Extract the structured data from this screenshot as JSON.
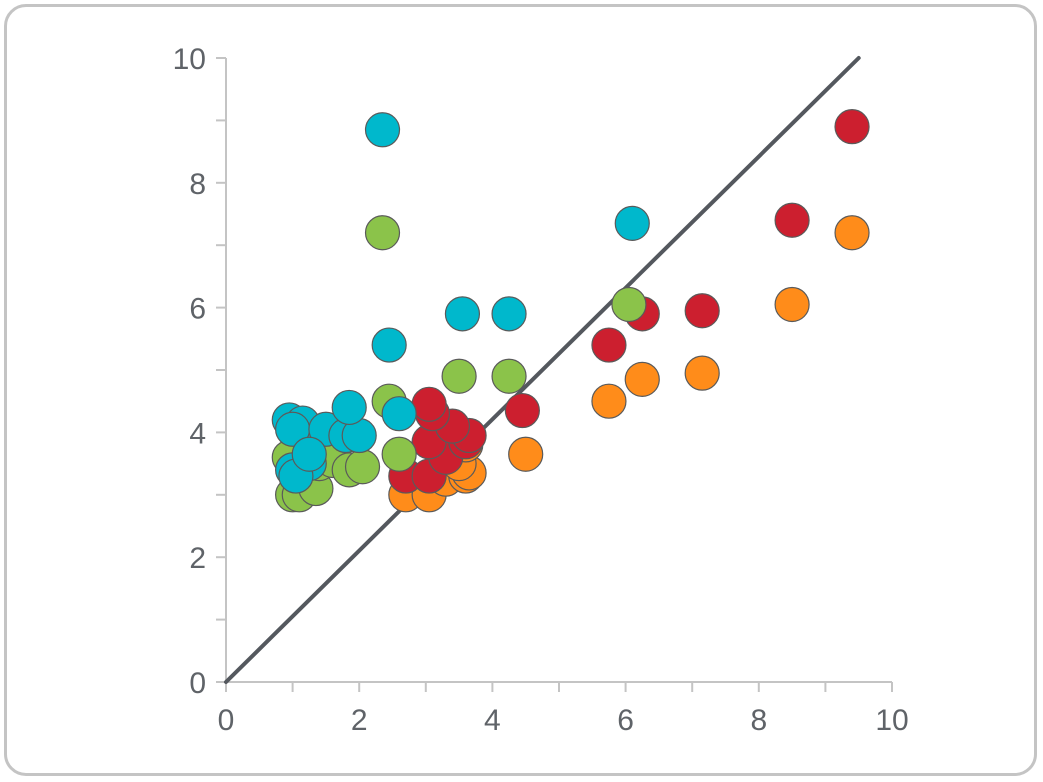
{
  "chart_data": {
    "type": "scatter",
    "title": "",
    "xlabel": "",
    "ylabel": "",
    "xlim": [
      0,
      10
    ],
    "ylim": [
      0,
      10
    ],
    "grid": false,
    "x_ticks": [
      "0",
      "2",
      "4",
      "6",
      "8",
      "10"
    ],
    "y_ticks": [
      "0",
      "2",
      "4",
      "6",
      "8",
      "10"
    ],
    "reference_line": {
      "from": [
        0,
        0
      ],
      "to": [
        9.5,
        10
      ],
      "color": "#54585e"
    },
    "series": [
      {
        "color": "#ff8c1a",
        "points": [
          [
            2.7,
            3.0
          ],
          [
            3.05,
            3.0
          ],
          [
            3.3,
            3.25
          ],
          [
            3.6,
            3.3
          ],
          [
            3.65,
            3.35
          ],
          [
            3.5,
            3.5
          ],
          [
            3.6,
            3.8
          ],
          [
            4.5,
            3.65
          ],
          [
            5.75,
            4.5
          ],
          [
            6.25,
            4.85
          ],
          [
            7.15,
            4.95
          ],
          [
            8.5,
            6.05
          ],
          [
            9.4,
            7.2
          ]
        ]
      },
      {
        "color": "#cc1f2f",
        "points": [
          [
            2.7,
            3.3
          ],
          [
            3.05,
            3.3
          ],
          [
            3.3,
            3.6
          ],
          [
            3.05,
            3.85
          ],
          [
            3.6,
            3.85
          ],
          [
            3.65,
            3.95
          ],
          [
            3.4,
            4.1
          ],
          [
            3.1,
            4.3
          ],
          [
            3.05,
            4.45
          ],
          [
            4.45,
            4.35
          ],
          [
            5.75,
            5.4
          ],
          [
            6.25,
            5.9
          ],
          [
            7.15,
            5.95
          ],
          [
            8.5,
            7.4
          ],
          [
            9.4,
            8.9
          ]
        ]
      },
      {
        "color": "#8bc34a",
        "points": [
          [
            1.0,
            3.0
          ],
          [
            1.1,
            3.0
          ],
          [
            1.35,
            3.1
          ],
          [
            0.95,
            3.6
          ],
          [
            1.4,
            3.5
          ],
          [
            1.6,
            3.55
          ],
          [
            1.85,
            3.4
          ],
          [
            2.05,
            3.45
          ],
          [
            2.45,
            4.5
          ],
          [
            2.6,
            3.65
          ],
          [
            3.5,
            4.9
          ],
          [
            4.25,
            4.9
          ],
          [
            6.05,
            6.05
          ],
          [
            2.35,
            7.2
          ]
        ]
      },
      {
        "color": "#00b8cc",
        "points": [
          [
            0.95,
            4.2
          ],
          [
            1.15,
            4.15
          ],
          [
            1.0,
            4.05
          ],
          [
            1.5,
            4.05
          ],
          [
            1.8,
            3.95
          ],
          [
            2.0,
            3.95
          ],
          [
            1.85,
            4.4
          ],
          [
            1.25,
            3.5
          ],
          [
            1.0,
            3.4
          ],
          [
            1.05,
            3.3
          ],
          [
            1.25,
            3.65
          ],
          [
            2.6,
            4.3
          ],
          [
            2.45,
            5.4
          ],
          [
            3.55,
            5.9
          ],
          [
            4.25,
            5.9
          ],
          [
            6.1,
            7.35
          ],
          [
            2.35,
            8.85
          ]
        ]
      }
    ]
  }
}
